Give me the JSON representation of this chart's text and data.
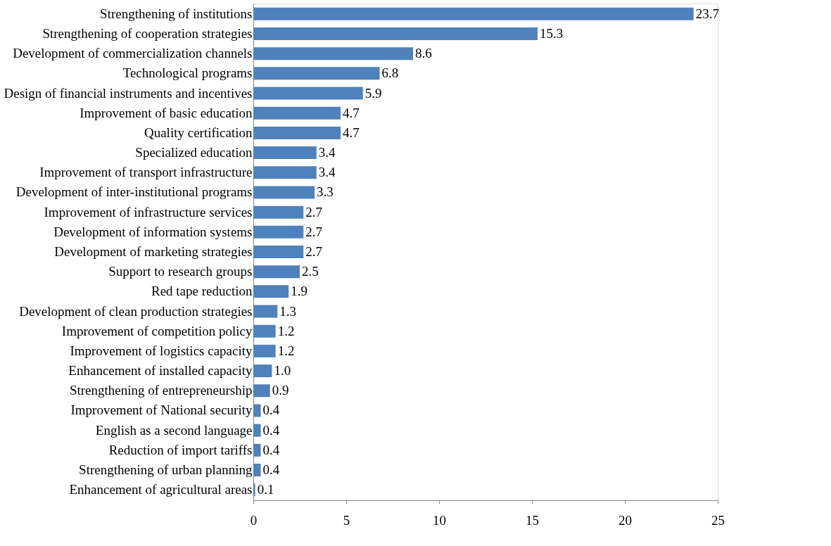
{
  "chart_data": {
    "type": "bar",
    "orientation": "horizontal",
    "categories": [
      "Strengthening of institutions",
      "Strengthening of cooperation strategies",
      "Development of commercialization channels",
      "Technological programs",
      "Design of financial instruments and incentives",
      "Improvement of basic education",
      "Quality certification",
      "Specialized education",
      "Improvement of transport infrastructure",
      "Development of inter-institutional programs",
      "Improvement of  infrastructure services",
      "Development of information systems",
      "Development of marketing strategies",
      "Support to research groups",
      "Red tape reduction",
      "Development of clean production strategies",
      "Improvement of competition policy",
      "Improvement of logistics capacity",
      "Enhancement of  installed capacity",
      "Strengthening of entrepreneurship",
      "Improvement of National security",
      "English as a second language",
      "Reduction of import tariffs",
      "Strengthening of urban planning",
      "Enhancement of agricultural areas"
    ],
    "values": [
      23.7,
      15.3,
      8.6,
      6.8,
      5.9,
      4.7,
      4.7,
      3.4,
      3.4,
      3.3,
      2.7,
      2.7,
      2.7,
      2.5,
      1.9,
      1.3,
      1.2,
      1.2,
      1.0,
      0.9,
      0.4,
      0.4,
      0.4,
      0.4,
      0.1
    ],
    "value_labels": [
      "23.7",
      "15.3",
      "8.6",
      "6.8",
      "5.9",
      "4.7",
      "4.7",
      "3.4",
      "3.4",
      "3.3",
      "2.7",
      "2.7",
      "2.7",
      "2.5",
      "1.9",
      "1.3",
      "1.2",
      "1.2",
      "1.0",
      "0.9",
      "0.4",
      "0.4",
      "0.4",
      "0.4",
      "0.1"
    ],
    "color": "#4f81bd",
    "xlim": [
      0,
      25
    ],
    "xticks": [
      0,
      5,
      10,
      15,
      20,
      25
    ],
    "grid": false
  }
}
